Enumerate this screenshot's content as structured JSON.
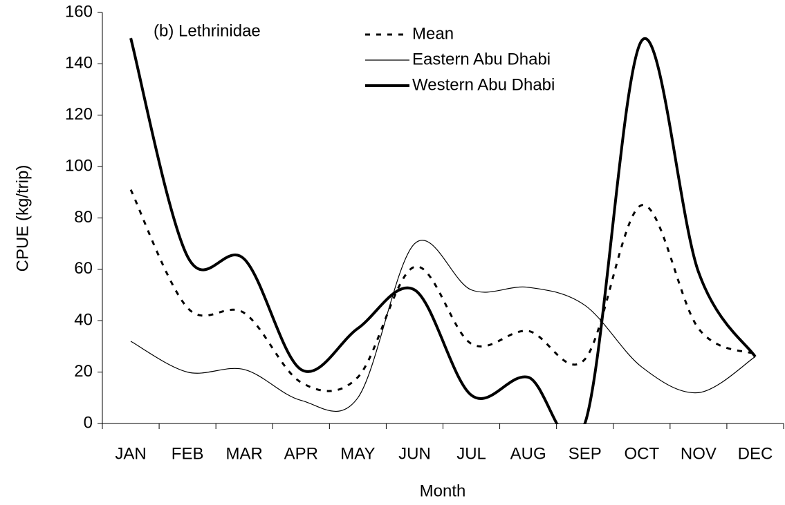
{
  "chart_data": {
    "type": "line",
    "annotation": "(b) Lethrinidae",
    "x_label": "Month",
    "y_label": "CPUE (kg/trip)",
    "categories": [
      "JAN",
      "FEB",
      "MAR",
      "APR",
      "MAY",
      "JUN",
      "JUL",
      "AUG",
      "SEP",
      "OCT",
      "NOV",
      "DEC"
    ],
    "series": [
      {
        "name": "Mean",
        "color": "#000000",
        "style": "dashed",
        "width": 3,
        "values": [
          91,
          45,
          43,
          16,
          18,
          61,
          31,
          36,
          25,
          85,
          37,
          27
        ]
      },
      {
        "name": "Eastern Abu Dhabi",
        "color": "#000000",
        "style": "solid",
        "width": 1.2,
        "values": [
          32,
          20,
          21,
          9,
          10,
          70,
          52,
          53,
          46,
          22,
          12,
          26
        ]
      },
      {
        "name": "Western Abu Dhabi",
        "color": "#000000",
        "style": "solid",
        "width": 4,
        "values": [
          150,
          65,
          64,
          21,
          37,
          52,
          11,
          18,
          0,
          149,
          59,
          26
        ]
      }
    ],
    "ylim": [
      0,
      160
    ],
    "yticks": [
      0,
      20,
      40,
      60,
      80,
      100,
      120,
      140,
      160
    ],
    "smooth": true
  }
}
